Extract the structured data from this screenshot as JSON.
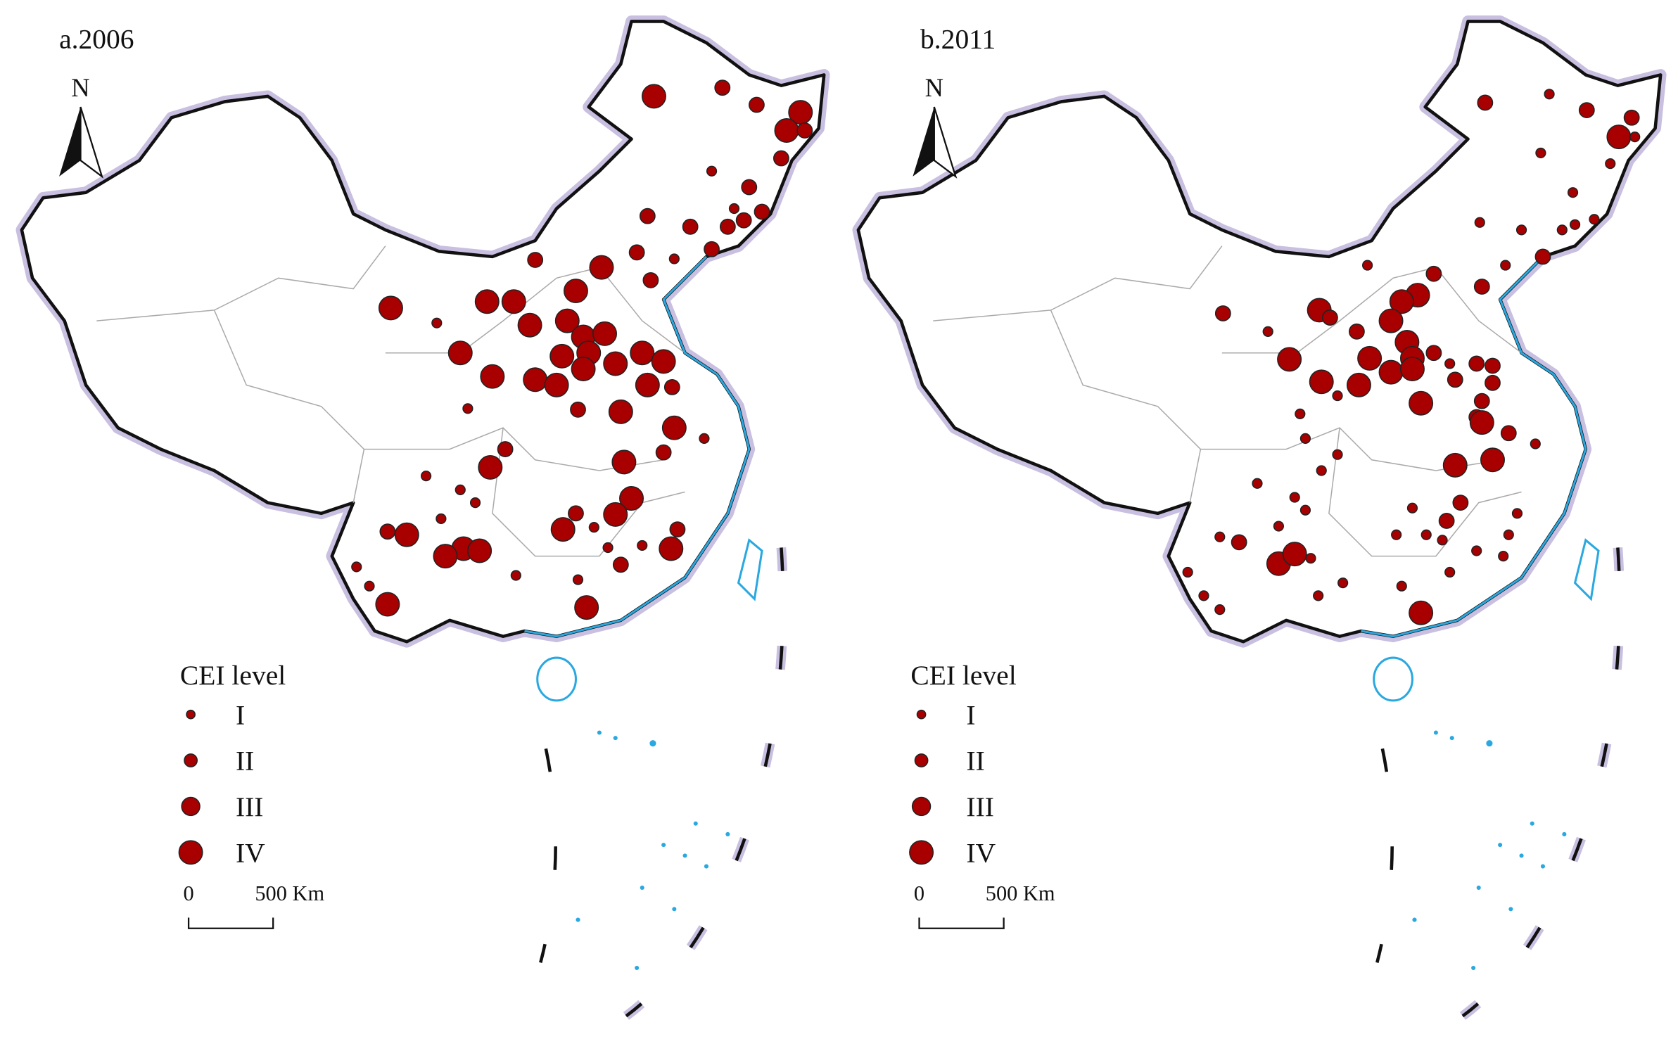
{
  "panels": [
    {
      "title": "a.2006"
    },
    {
      "title": "b.2011"
    }
  ],
  "north": "N",
  "legend": {
    "title": "CEI level",
    "levels": [
      "I",
      "II",
      "III",
      "IV"
    ]
  },
  "scale_bar": {
    "start": "0",
    "end": "500 Km"
  }
}
